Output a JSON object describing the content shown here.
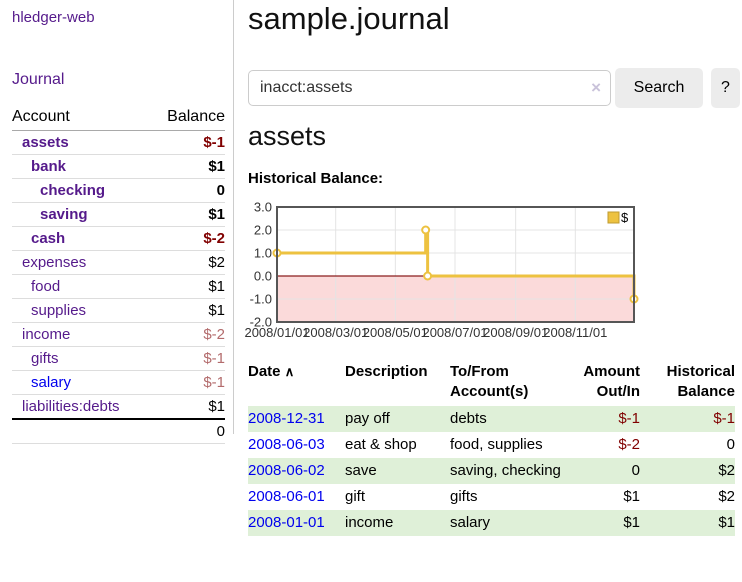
{
  "sidebar": {
    "app_title": "hledger-web",
    "journal_link": "Journal",
    "accounts_table": {
      "account_header": "Account",
      "balance_header": "Balance",
      "rows": [
        {
          "account": "assets",
          "depth": 1,
          "bold": true,
          "balance": "$-1",
          "balance_tone": "negative-strong",
          "link_tone": "visited"
        },
        {
          "account": "bank",
          "depth": 2,
          "bold": true,
          "balance": "$1",
          "balance_tone": "normal",
          "link_tone": "visited"
        },
        {
          "account": "checking",
          "depth": 3,
          "bold": true,
          "balance": "0",
          "balance_tone": "normal",
          "link_tone": "visited"
        },
        {
          "account": "saving",
          "depth": 3,
          "bold": true,
          "balance": "$1",
          "balance_tone": "normal",
          "link_tone": "visited"
        },
        {
          "account": "cash",
          "depth": 2,
          "bold": true,
          "balance": "$-2",
          "balance_tone": "negative-strong",
          "link_tone": "visited"
        },
        {
          "account": "expenses",
          "depth": 1,
          "bold": false,
          "balance": "$2",
          "balance_tone": "normal",
          "link_tone": "visited"
        },
        {
          "account": "food",
          "depth": 2,
          "bold": false,
          "balance": "$1",
          "balance_tone": "normal",
          "link_tone": "visited"
        },
        {
          "account": "supplies",
          "depth": 2,
          "bold": false,
          "balance": "$1",
          "balance_tone": "normal",
          "link_tone": "visited"
        },
        {
          "account": "income",
          "depth": 1,
          "bold": false,
          "balance": "$-2",
          "balance_tone": "negative-soft",
          "link_tone": "visited"
        },
        {
          "account": "gifts",
          "depth": 2,
          "bold": false,
          "balance": "$-1",
          "balance_tone": "negative-soft",
          "link_tone": "visited"
        },
        {
          "account": "salary",
          "depth": 2,
          "bold": false,
          "balance": "$-1",
          "balance_tone": "negative-soft",
          "link_tone": "unvisited"
        },
        {
          "account": "liabilities:debts",
          "depth": 1,
          "bold": false,
          "balance": "$1",
          "balance_tone": "normal",
          "link_tone": "visited"
        }
      ],
      "total": "0"
    }
  },
  "header": {
    "title": "sample.journal"
  },
  "search": {
    "query": "inacct:assets",
    "clear_icon": "×",
    "search_button": "Search",
    "help_button": "?"
  },
  "account_page": {
    "heading": "assets",
    "chart_label": "Historical Balance:"
  },
  "chart_data": {
    "type": "line",
    "step": true,
    "title": "Historical Balance:",
    "xlim_days": [
      0,
      365
    ],
    "ylim": [
      -2,
      3
    ],
    "grid": true,
    "legend_position": "top-right",
    "series": [
      {
        "name": "$",
        "color": "#edc240",
        "points": [
          {
            "date": "2008/01/01",
            "day": 0,
            "value": 1
          },
          {
            "date": "2008/06/01",
            "day": 152,
            "value": 2
          },
          {
            "date": "2008/06/03",
            "day": 154,
            "value": 0
          },
          {
            "date": "2008/12/31",
            "day": 365,
            "value": -1
          }
        ]
      }
    ],
    "x_ticks": [
      {
        "label": "2008/01/01",
        "day": 0
      },
      {
        "label": "2008/03/01",
        "day": 60
      },
      {
        "label": "2008/05/01",
        "day": 121
      },
      {
        "label": "2008/07/01",
        "day": 182
      },
      {
        "label": "2008/09/01",
        "day": 244
      },
      {
        "label": "2008/11/01",
        "day": 305
      }
    ],
    "y_ticks": [
      {
        "label": "3.0",
        "value": 3
      },
      {
        "label": "2.0",
        "value": 2
      },
      {
        "label": "1.0",
        "value": 1
      },
      {
        "label": "0.0",
        "value": 0
      },
      {
        "label": "-1.0",
        "value": -1
      },
      {
        "label": "-2.0",
        "value": -2
      }
    ],
    "colors": {
      "border": "#565656",
      "grid": "#e4e4e4",
      "negative_region": "#fbdada",
      "zero_line": "#8b1e1e",
      "tick_text": "#333333"
    }
  },
  "register": {
    "sort_icon": "∧",
    "headers": [
      "Date",
      "Description",
      "To/From Account(s)",
      "Amount Out/In",
      "Historical Balance"
    ],
    "rows": [
      {
        "date": "2008-12-31",
        "description": "pay off",
        "accounts": "debts",
        "amount": "$-1",
        "balance": "$-1"
      },
      {
        "date": "2008-06-03",
        "description": "eat & shop",
        "accounts": "food, supplies",
        "amount": "$-2",
        "balance": "0"
      },
      {
        "date": "2008-06-02",
        "description": "save",
        "accounts": "saving, checking",
        "amount": "0",
        "balance": "$2"
      },
      {
        "date": "2008-06-01",
        "description": "gift",
        "accounts": "gifts",
        "amount": "$1",
        "balance": "$2"
      },
      {
        "date": "2008-01-01",
        "description": "income",
        "accounts": "salary",
        "amount": "$1",
        "balance": "$1"
      }
    ]
  },
  "colors": {
    "link_visited": "#551a8b",
    "link_unvisited": "#0000ee",
    "negative_strong": "#800000",
    "negative_soft": "#b36b6c",
    "row_stripe_green": "#dff0d8",
    "series_gold": "#edc240"
  }
}
